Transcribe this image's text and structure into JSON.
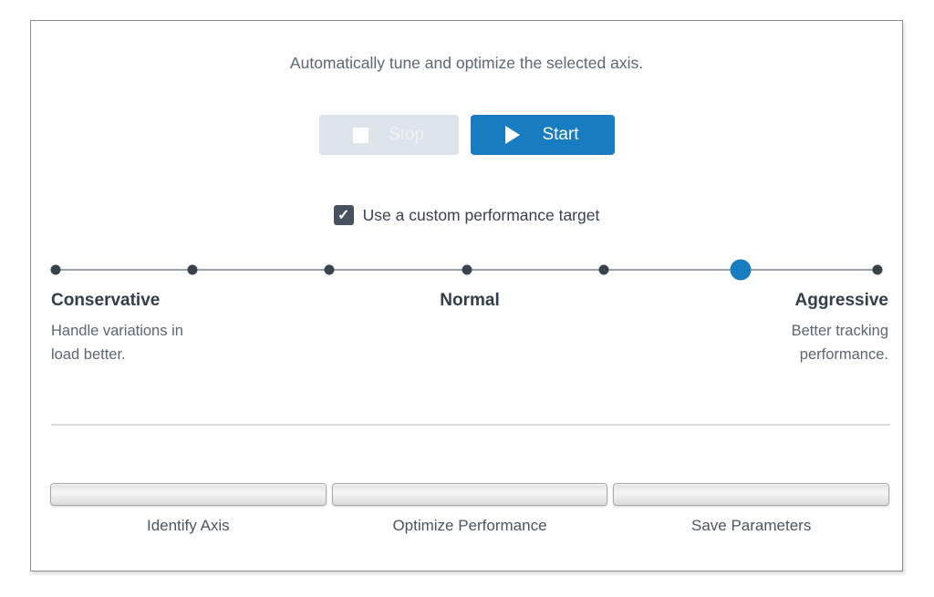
{
  "instruction": "Automatically tune and optimize the selected axis.",
  "buttons": {
    "stop_label": "Stop",
    "start_label": "Start",
    "stop_enabled": false
  },
  "checkbox": {
    "label": "Use a custom performance target",
    "checked": true,
    "check_glyph": "✓"
  },
  "slider": {
    "steps": 7,
    "selected_index": 5,
    "left_title": "Conservative",
    "left_description": "Handle variations in load better.",
    "center_title": "Normal",
    "right_title": "Aggressive",
    "right_description": "Better tracking performance."
  },
  "progress_steps": [
    {
      "label": "Identify Axis",
      "percent": 0
    },
    {
      "label": "Optimize Performance",
      "percent": 0
    },
    {
      "label": "Save Parameters",
      "percent": 0
    }
  ],
  "colors": {
    "accent_blue": "#187cc0",
    "dark_slate": "#39424e",
    "gray_text": "#5c6670",
    "disabled_button_bg": "#dde4ea",
    "dot_dark": "#39434e",
    "track_gray": "#9aa1a8"
  }
}
